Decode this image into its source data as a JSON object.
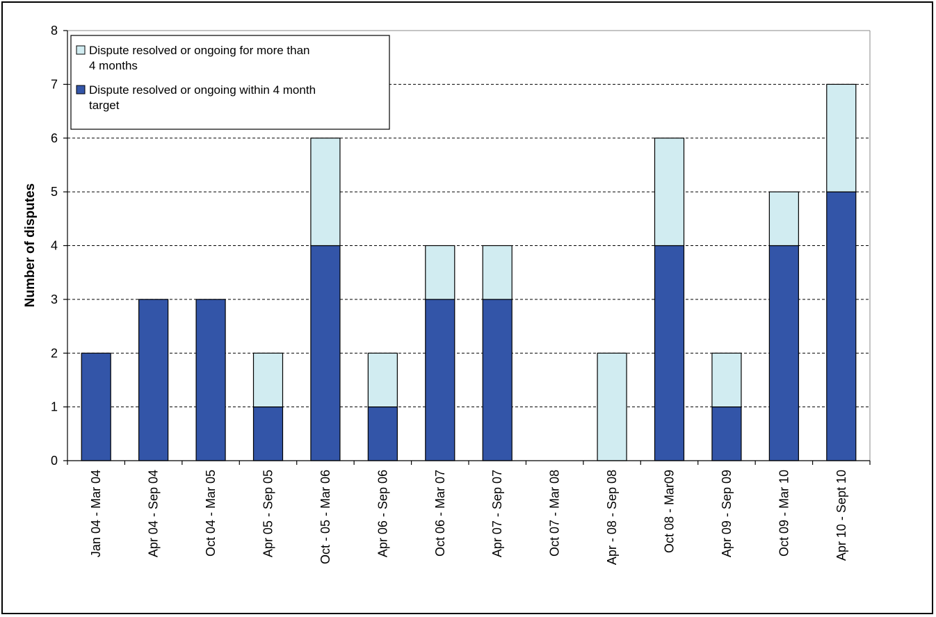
{
  "chart_data": {
    "type": "bar",
    "stacked": true,
    "title": "",
    "xlabel": "",
    "ylabel": "Number of disputes",
    "ylim": [
      0,
      8
    ],
    "yticks": [
      "0",
      "1",
      "2",
      "3",
      "4",
      "5",
      "6",
      "7",
      "8"
    ],
    "grid": "horizontal dashed",
    "legend_position": "top-left",
    "categories": [
      "Jan 04 - Mar 04",
      "Apr 04 - Sep 04",
      "Oct 04 - Mar 05",
      "Apr 05 - Sep 05",
      "Oct - 05 - Mar 06",
      "Apr 06 - Sep 06",
      "Oct 06 - Mar 07",
      "Apr 07 - Sep 07",
      "Oct 07 - Mar 08",
      "Apr - 08 - Sep 08",
      "Oct 08 - Mar09",
      "Apr 09 - Sep 09",
      "Oct 09 - Mar 10",
      "Apr 10 - Sept 10"
    ],
    "series": [
      {
        "name": "Dispute resolved or ongoing within 4 month target",
        "legend_lines": [
          "Dispute resolved or ongoing within 4 month",
          "target"
        ],
        "color": "#3355a8",
        "values": [
          2,
          3,
          3,
          1,
          4,
          1,
          3,
          3,
          0,
          0,
          4,
          1,
          4,
          5
        ]
      },
      {
        "name": "Dispute resolved or ongoing for more than 4 months",
        "legend_lines": [
          "Dispute resolved or ongoing for more than",
          "4 months"
        ],
        "color": "#d1ecf1",
        "values": [
          0,
          0,
          0,
          1,
          2,
          1,
          1,
          1,
          0,
          2,
          2,
          1,
          1,
          2
        ]
      }
    ]
  }
}
